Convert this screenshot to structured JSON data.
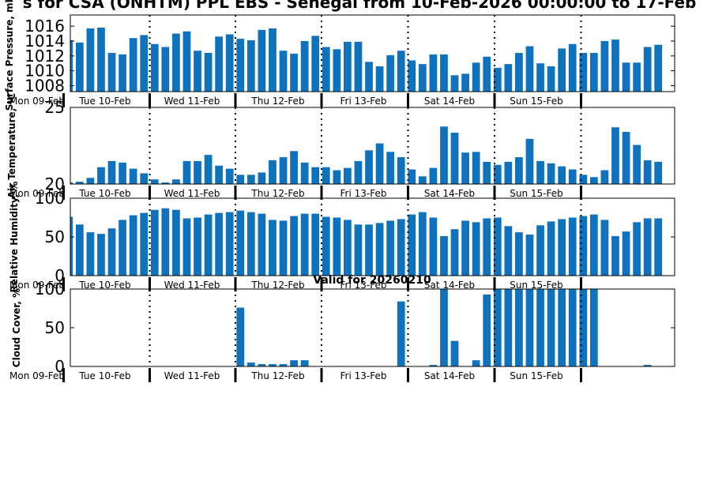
{
  "title": "s for CSA (ONHTM) PPL EBS  - Senegal from 10-Feb-2026 00:00:00 to 17-Feb",
  "valid_label": "Valid for 20260210",
  "colors": {
    "bar": "#0f72bd",
    "axis": "#000000",
    "background": "#ffffff"
  },
  "chart_data": [
    {
      "type": "bar",
      "title": "",
      "ylabel": "Surface Pressure, mb",
      "ylim": [
        1007.2,
        1017.5
      ],
      "yticks": [
        1008,
        1010,
        1012,
        1014,
        1016
      ],
      "ytick_labels": [
        "1008",
        "1010",
        "1012",
        "1014",
        "1016"
      ],
      "xtick_labels": [
        "Mon 09-Feb",
        "Tue 10-Feb",
        "Wed 11-Feb",
        "Thu 12-Feb",
        "Fri 13-Feb",
        "Sat 14-Feb",
        "Sun 15-Feb"
      ],
      "values": [
        1014.1,
        1013.8,
        1015.7,
        1015.8,
        1012.4,
        1012.2,
        1014.4,
        1014.8,
        1013.6,
        1013.2,
        1015.0,
        1015.3,
        1012.7,
        1012.4,
        1014.6,
        1014.9,
        1014.3,
        1014.1,
        1015.5,
        1015.7,
        1012.7,
        1012.3,
        1014.0,
        1014.7,
        1013.2,
        1012.9,
        1013.9,
        1013.9,
        1011.2,
        1010.6,
        1012.1,
        1012.7,
        1011.4,
        1010.9,
        1012.2,
        1012.2,
        1009.4,
        1009.6,
        1011.1,
        1011.9,
        1010.4,
        1010.9,
        1012.4,
        1013.3,
        1011.0,
        1010.6,
        1013.0,
        1013.6,
        1012.4,
        1012.4,
        1014.0,
        1014.2,
        1011.1,
        1011.1,
        1013.2,
        1013.5
      ]
    },
    {
      "type": "bar",
      "title": "",
      "ylabel": "Air Temperature, °C",
      "ylim": [
        20,
        25
      ],
      "yticks": [
        20,
        25
      ],
      "ytick_labels": [
        "20",
        "25"
      ],
      "xtick_labels": [
        "Mon 09-Feb",
        "Tue 10-Feb",
        "Wed 11-Feb",
        "Thu 12-Feb",
        "Fri 13-Feb",
        "Sat 14-Feb",
        "Sun 15-Feb"
      ],
      "values": [
        20.1,
        20.15,
        20.4,
        21.1,
        21.5,
        21.4,
        21.0,
        20.7,
        20.3,
        20.1,
        20.3,
        21.5,
        21.5,
        21.9,
        21.2,
        21.0,
        20.6,
        20.6,
        20.75,
        21.55,
        21.75,
        22.15,
        21.4,
        21.1,
        21.1,
        20.9,
        21.05,
        21.5,
        22.2,
        22.65,
        22.1,
        21.75,
        20.95,
        20.5,
        21.05,
        23.75,
        23.35,
        22.05,
        22.1,
        21.45,
        21.25,
        21.45,
        21.75,
        22.95,
        21.5,
        21.35,
        21.15,
        20.95,
        20.6,
        20.45,
        20.9,
        23.7,
        23.4,
        22.55,
        21.55,
        21.45
      ]
    },
    {
      "type": "bar",
      "title": "",
      "ylabel": "Relative Humidity, %",
      "ylim": [
        0,
        100
      ],
      "yticks": [
        0,
        50,
        100
      ],
      "ytick_labels": [
        "0",
        "50",
        "100"
      ],
      "xtick_labels": [
        "Mon 09-Feb",
        "Tue 10-Feb",
        "Wed 11-Feb",
        "Thu 12-Feb",
        "Fri 13-Feb",
        "Sat 14-Feb",
        "Sun 15-Feb"
      ],
      "values": [
        76,
        66,
        56,
        54,
        61,
        72,
        78,
        81,
        85,
        87,
        85,
        74,
        75,
        79,
        81,
        82,
        84,
        82,
        80,
        72,
        71,
        77,
        80,
        80,
        76,
        75,
        72,
        66,
        66,
        68,
        71,
        73,
        79,
        82,
        75,
        51,
        60,
        71,
        69,
        74,
        75,
        64,
        56,
        53,
        65,
        70,
        73,
        75,
        77,
        79,
        72,
        51,
        57,
        69,
        74,
        74
      ]
    },
    {
      "type": "bar",
      "title": "",
      "ylabel": "Cloud Cover, %",
      "ylim": [
        0,
        100
      ],
      "yticks": [
        0,
        50,
        100
      ],
      "ytick_labels": [
        "0",
        "50",
        "100"
      ],
      "xtick_labels": [
        "Mon 09-Feb",
        "Tue 10-Feb",
        "Wed 11-Feb",
        "Thu 12-Feb",
        "Fri 13-Feb",
        "Sat 14-Feb",
        "Sun 15-Feb"
      ],
      "values": [
        0,
        0,
        0,
        0,
        0,
        0,
        0,
        0,
        0,
        0,
        0,
        0,
        0,
        0,
        0,
        0,
        76,
        5,
        3,
        3,
        3,
        8,
        8,
        0,
        0,
        0,
        0,
        0,
        0,
        0,
        0,
        84,
        0,
        0,
        2,
        100,
        33,
        0,
        8,
        93,
        100,
        100,
        100,
        100,
        100,
        100,
        100,
        100,
        100,
        100,
        0,
        0,
        0,
        0,
        2,
        0
      ]
    }
  ]
}
